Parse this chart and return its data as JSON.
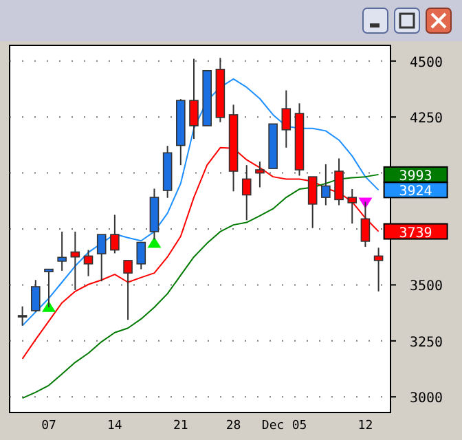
{
  "chart_data": {
    "type": "candlestick",
    "categories": [
      null,
      null,
      "07",
      null,
      null,
      null,
      null,
      "14",
      null,
      null,
      null,
      null,
      "21",
      null,
      null,
      null,
      "28",
      null,
      null,
      "Dec",
      null,
      "05",
      null,
      null,
      null,
      null,
      "12",
      null
    ],
    "ohlc": [
      [
        3363,
        3404,
        3318,
        3363
      ],
      [
        3385,
        3522,
        3379,
        3492
      ],
      [
        3559,
        3570,
        3400,
        3570
      ],
      [
        3606,
        3738,
        3563,
        3623
      ],
      [
        3647,
        3738,
        3477,
        3625
      ],
      [
        3629,
        3656,
        3539,
        3594
      ],
      [
        3639,
        3725,
        3516,
        3725
      ],
      [
        3725,
        3813,
        3641,
        3656
      ],
      [
        3609,
        3609,
        3344,
        3553
      ],
      [
        3594,
        3690,
        3570,
        3690
      ],
      [
        3738,
        3930,
        3703,
        3891
      ],
      [
        3922,
        4121,
        3889,
        4090
      ],
      [
        4123,
        4330,
        4035,
        4324
      ],
      [
        4324,
        4510,
        4152,
        4211
      ],
      [
        4211,
        4457,
        4211,
        4457
      ],
      [
        4463,
        4514,
        4227,
        4248
      ],
      [
        4260,
        4305,
        3918,
        4008
      ],
      [
        3973,
        4035,
        3789,
        3902
      ],
      [
        4014,
        4051,
        3936,
        4000
      ],
      [
        4020,
        4219,
        4020,
        4219
      ],
      [
        4287,
        4369,
        4113,
        4193
      ],
      [
        4266,
        4311,
        3988,
        4014
      ],
      [
        3983,
        3983,
        3754,
        3861
      ],
      [
        3891,
        4039,
        3856,
        3942
      ],
      [
        4008,
        4065,
        3856,
        3881
      ],
      [
        3891,
        3928,
        3774,
        3867
      ],
      [
        3795,
        3871,
        3670,
        3695
      ],
      [
        3629,
        3666,
        3471,
        3609
      ]
    ],
    "colors": [
      "#333333",
      "#1c6fe0",
      "#1c6fe0",
      "#1c6fe0",
      "#ff0000",
      "#ff0000",
      "#1c6fe0",
      "#ff0000",
      "#ff0000",
      "#1c6fe0",
      "#1c6fe0",
      "#1c6fe0",
      "#1c6fe0",
      "#ff0000",
      "#1c6fe0",
      "#ff0000",
      "#ff0000",
      "#ff0000",
      "#ff0000",
      "#1c6fe0",
      "#ff0000",
      "#ff0000",
      "#ff0000",
      "#1c6fe0",
      "#ff0000",
      "#ff0000",
      "#ff0000",
      "#ff0000"
    ],
    "series": [
      {
        "type": "line",
        "color": "#1e90ff",
        "values": [
          3318,
          3379,
          3440,
          3512,
          3584,
          3645,
          3686,
          3727,
          3711,
          3697,
          3738,
          3820,
          3953,
          4199,
          4322,
          4383,
          4420,
          4383,
          4332,
          4260,
          4209,
          4199,
          4199,
          4188,
          4147,
          4076,
          3983,
          3924
        ],
        "value_labels": [
          null,
          null,
          null,
          null,
          null,
          null,
          null,
          null,
          null,
          null,
          null,
          null,
          null,
          null,
          null,
          null,
          null,
          null,
          null,
          null,
          null,
          null,
          null,
          null,
          null,
          null,
          null,
          "3924"
        ]
      },
      {
        "type": "line",
        "color": "#ff0000",
        "values": [
          3170,
          3256,
          3338,
          3420,
          3471,
          3502,
          3522,
          3547,
          3512,
          3533,
          3553,
          3625,
          3717,
          3891,
          4035,
          4113,
          4110,
          4059,
          4024,
          3983,
          3973,
          3973,
          3963,
          3932,
          3912,
          3871,
          3799,
          3739
        ],
        "value_labels": [
          null,
          null,
          null,
          null,
          null,
          null,
          null,
          null,
          null,
          null,
          null,
          null,
          null,
          null,
          null,
          null,
          null,
          null,
          null,
          null,
          null,
          null,
          null,
          null,
          null,
          null,
          null,
          "3739"
        ]
      },
      {
        "type": "line",
        "color": "#007a00",
        "values": [
          2994,
          3020,
          3051,
          3102,
          3154,
          3195,
          3246,
          3287,
          3307,
          3348,
          3400,
          3461,
          3543,
          3625,
          3686,
          3738,
          3768,
          3779,
          3809,
          3840,
          3891,
          3928,
          3936,
          3953,
          3973,
          3979,
          3983,
          3993
        ],
        "value_labels": [
          null,
          null,
          null,
          null,
          null,
          null,
          null,
          null,
          null,
          null,
          null,
          null,
          null,
          null,
          null,
          null,
          null,
          null,
          null,
          null,
          null,
          null,
          null,
          null,
          null,
          null,
          null,
          "3993"
        ]
      },
      {
        "type": "scatter",
        "color": "#00ee00",
        "marker": "triangle",
        "values": [
          null,
          null,
          3404,
          null,
          null,
          null,
          null,
          null,
          null,
          null,
          3690,
          null,
          null,
          null,
          null,
          null,
          null,
          null,
          null,
          null,
          null,
          null,
          null,
          null,
          null,
          null,
          null,
          null
        ]
      },
      {
        "type": "scatter",
        "color": "#ff00ff",
        "marker": "triangle-down",
        "values": [
          null,
          null,
          null,
          null,
          null,
          null,
          null,
          null,
          null,
          null,
          null,
          null,
          null,
          null,
          null,
          null,
          null,
          null,
          null,
          null,
          null,
          null,
          null,
          null,
          null,
          null,
          3865,
          null
        ]
      }
    ],
    "ylim": [
      2930,
      4570
    ],
    "yticks": [
      3000,
      3250,
      3500,
      {
        "value": 3750,
        "label": null
      },
      {
        "value": 4000,
        "label": null
      },
      4250,
      4500
    ],
    "grid": "y"
  }
}
